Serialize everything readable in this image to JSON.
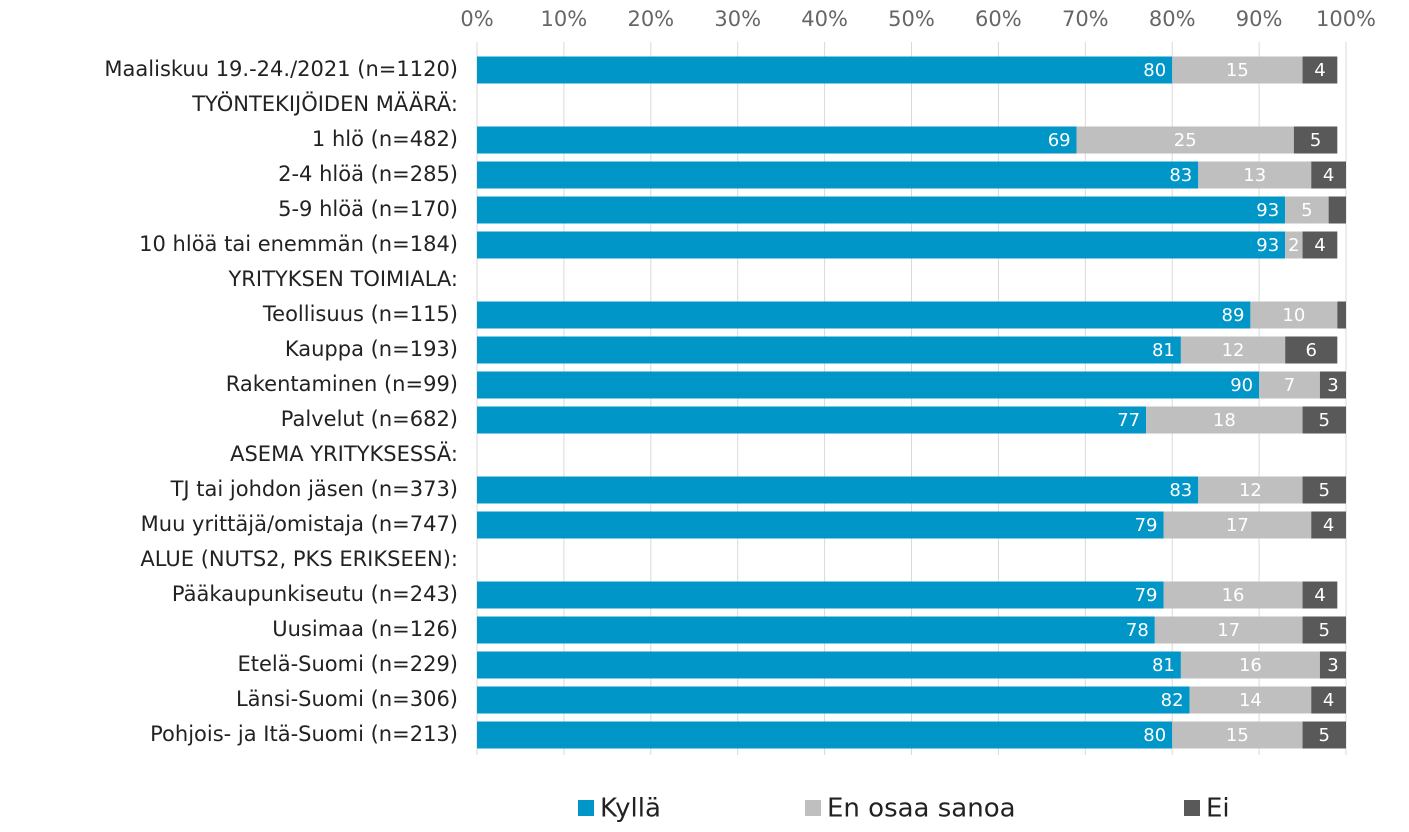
{
  "chart_data": {
    "type": "stacked_barh",
    "categories": [
      "Maaliskuu 19.-24./2021 (n=1120)",
      "TYÖNTEKIJÖIDEN MÄÄRÄ:",
      "1 hlö (n=482)",
      "2-4 hlöä (n=285)",
      "5-9 hlöä (n=170)",
      "10 hlöä tai enemmän (n=184)",
      "YRITYKSEN TOIMIALA:",
      "Teollisuus (n=115)",
      "Kauppa (n=193)",
      "Rakentaminen (n=99)",
      "Palvelut (n=682)",
      "ASEMA YRITYKSESSÄ:",
      "TJ tai johdon jäsen (n=373)",
      "Muu yrittäjä/omistaja (n=747)",
      "ALUE (NUTS2, PKS ERIKSEEN):",
      "Pääkaupunkiseutu (n=243)",
      "Uusimaa (n=126)",
      "Etelä-Suomi (n=229)",
      "Länsi-Suomi (n=306)",
      "Pohjois- ja Itä-Suomi (n=213)"
    ],
    "series": [
      {
        "name": "Kyllä",
        "color": "#0096c8",
        "values": [
          80,
          null,
          69,
          83,
          93,
          93,
          null,
          89,
          81,
          90,
          77,
          null,
          83,
          79,
          null,
          79,
          78,
          81,
          82,
          80
        ]
      },
      {
        "name": "En osaa sanoa",
        "color": "#bfbfbf",
        "values": [
          15,
          null,
          25,
          13,
          5,
          2,
          null,
          10,
          12,
          7,
          18,
          null,
          12,
          17,
          null,
          16,
          17,
          16,
          14,
          15
        ]
      },
      {
        "name": "Ei",
        "color": "#595959",
        "values": [
          4,
          null,
          5,
          4,
          2,
          4,
          null,
          1,
          6,
          3,
          5,
          null,
          5,
          4,
          null,
          4,
          5,
          3,
          4,
          5
        ],
        "value_labels": [
          "4",
          null,
          "5",
          "4",
          null,
          "4",
          null,
          null,
          "6",
          "3",
          "5",
          null,
          "5",
          "4",
          null,
          "4",
          "5",
          "3",
          "4",
          "5"
        ]
      }
    ],
    "xlim": [
      0,
      100
    ],
    "xticks": [
      {
        "value": 0,
        "label": "0%"
      },
      {
        "value": 10,
        "label": "10%"
      },
      {
        "value": 20,
        "label": "20%"
      },
      {
        "value": 30,
        "label": "30%"
      },
      {
        "value": 40,
        "label": "40%"
      },
      {
        "value": 50,
        "label": "50%"
      },
      {
        "value": 60,
        "label": "60%"
      },
      {
        "value": 70,
        "label": "70%"
      },
      {
        "value": 80,
        "label": "80%"
      },
      {
        "value": 90,
        "label": "90%"
      },
      {
        "value": 100,
        "label": "100%"
      }
    ],
    "grid": true,
    "legend": "bottom"
  }
}
